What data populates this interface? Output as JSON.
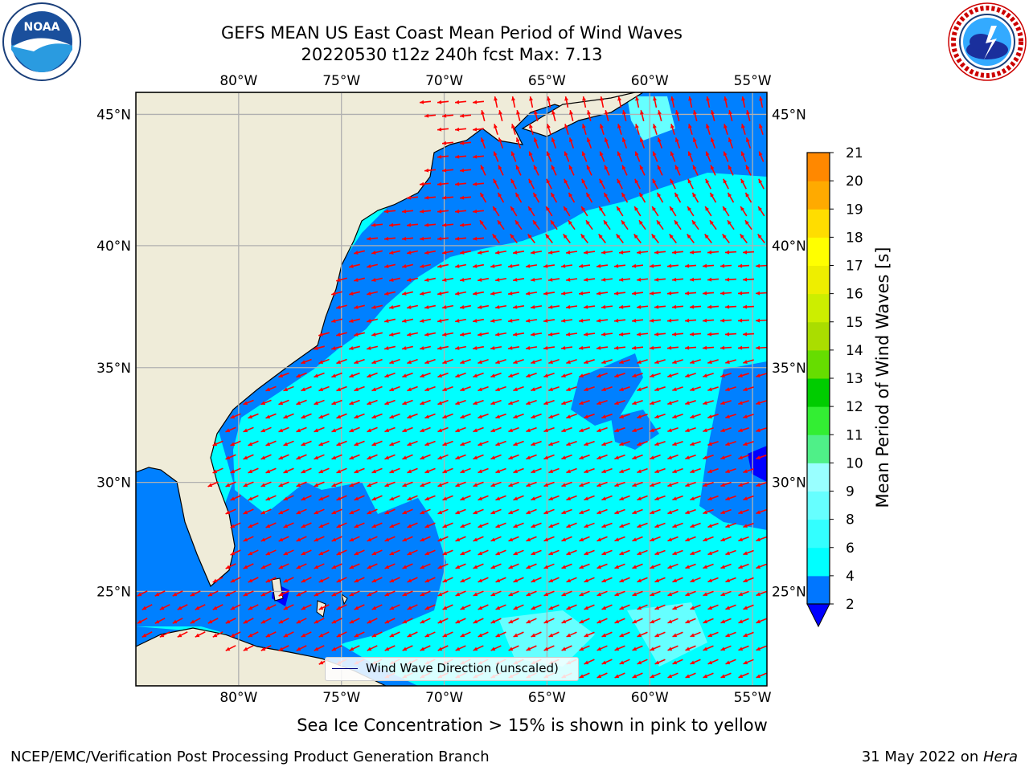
{
  "title": {
    "line1": "GEFS MEAN US East Coast Mean Period of Wind Waves",
    "line2": "20220530 t12z 240h fcst   Max: 7.13"
  },
  "logos": {
    "noaa_text": "NOAA",
    "nws_text": "NATIONAL WEATHER SERVICE"
  },
  "map": {
    "lon_labels": [
      "80°W",
      "75°W",
      "70°W",
      "65°W",
      "60°W",
      "55°W"
    ],
    "lat_labels": [
      "45°N",
      "40°N",
      "35°N",
      "30°N",
      "25°N"
    ],
    "lon_values": [
      -80,
      -75,
      -70,
      -65,
      -60,
      -55
    ],
    "lat_values": [
      45,
      40,
      35,
      30,
      25
    ],
    "extent": {
      "lon_min": -85,
      "lon_max": -54.3,
      "lat_min": 20.5,
      "lat_max": 45.8
    },
    "arrow_color": "#ff0000",
    "land_color": "#efecd9",
    "legend_label": "Wind Wave Direction (unscaled)"
  },
  "colorbar": {
    "label": "Mean Period of Wind Waves [s]",
    "ticks": [
      "2",
      "4",
      "6",
      "8",
      "9",
      "10",
      "11",
      "12",
      "13",
      "14",
      "15",
      "16",
      "17",
      "18",
      "19",
      "20",
      "21"
    ],
    "colors": [
      "#0076ff",
      "#00ffff",
      "#33ffff",
      "#66ffff",
      "#99ffff",
      "#4ff088",
      "#33ee33",
      "#00cc00",
      "#66dd00",
      "#aadd00",
      "#ccee00",
      "#eeee00",
      "#ffff00",
      "#ffdd00",
      "#ffaa00",
      "#ff8800",
      "#ff4400",
      "#ff0000"
    ],
    "under_color": "#0000ff"
  },
  "notes": {
    "ice": "Sea Ice Concentration > 15% is shown in pink to yellow",
    "credit_left": "NCEP/EMC/Verification Post Processing Product Generation Branch",
    "credit_date": "31 May 2022 on ",
    "credit_host": "Hera"
  }
}
